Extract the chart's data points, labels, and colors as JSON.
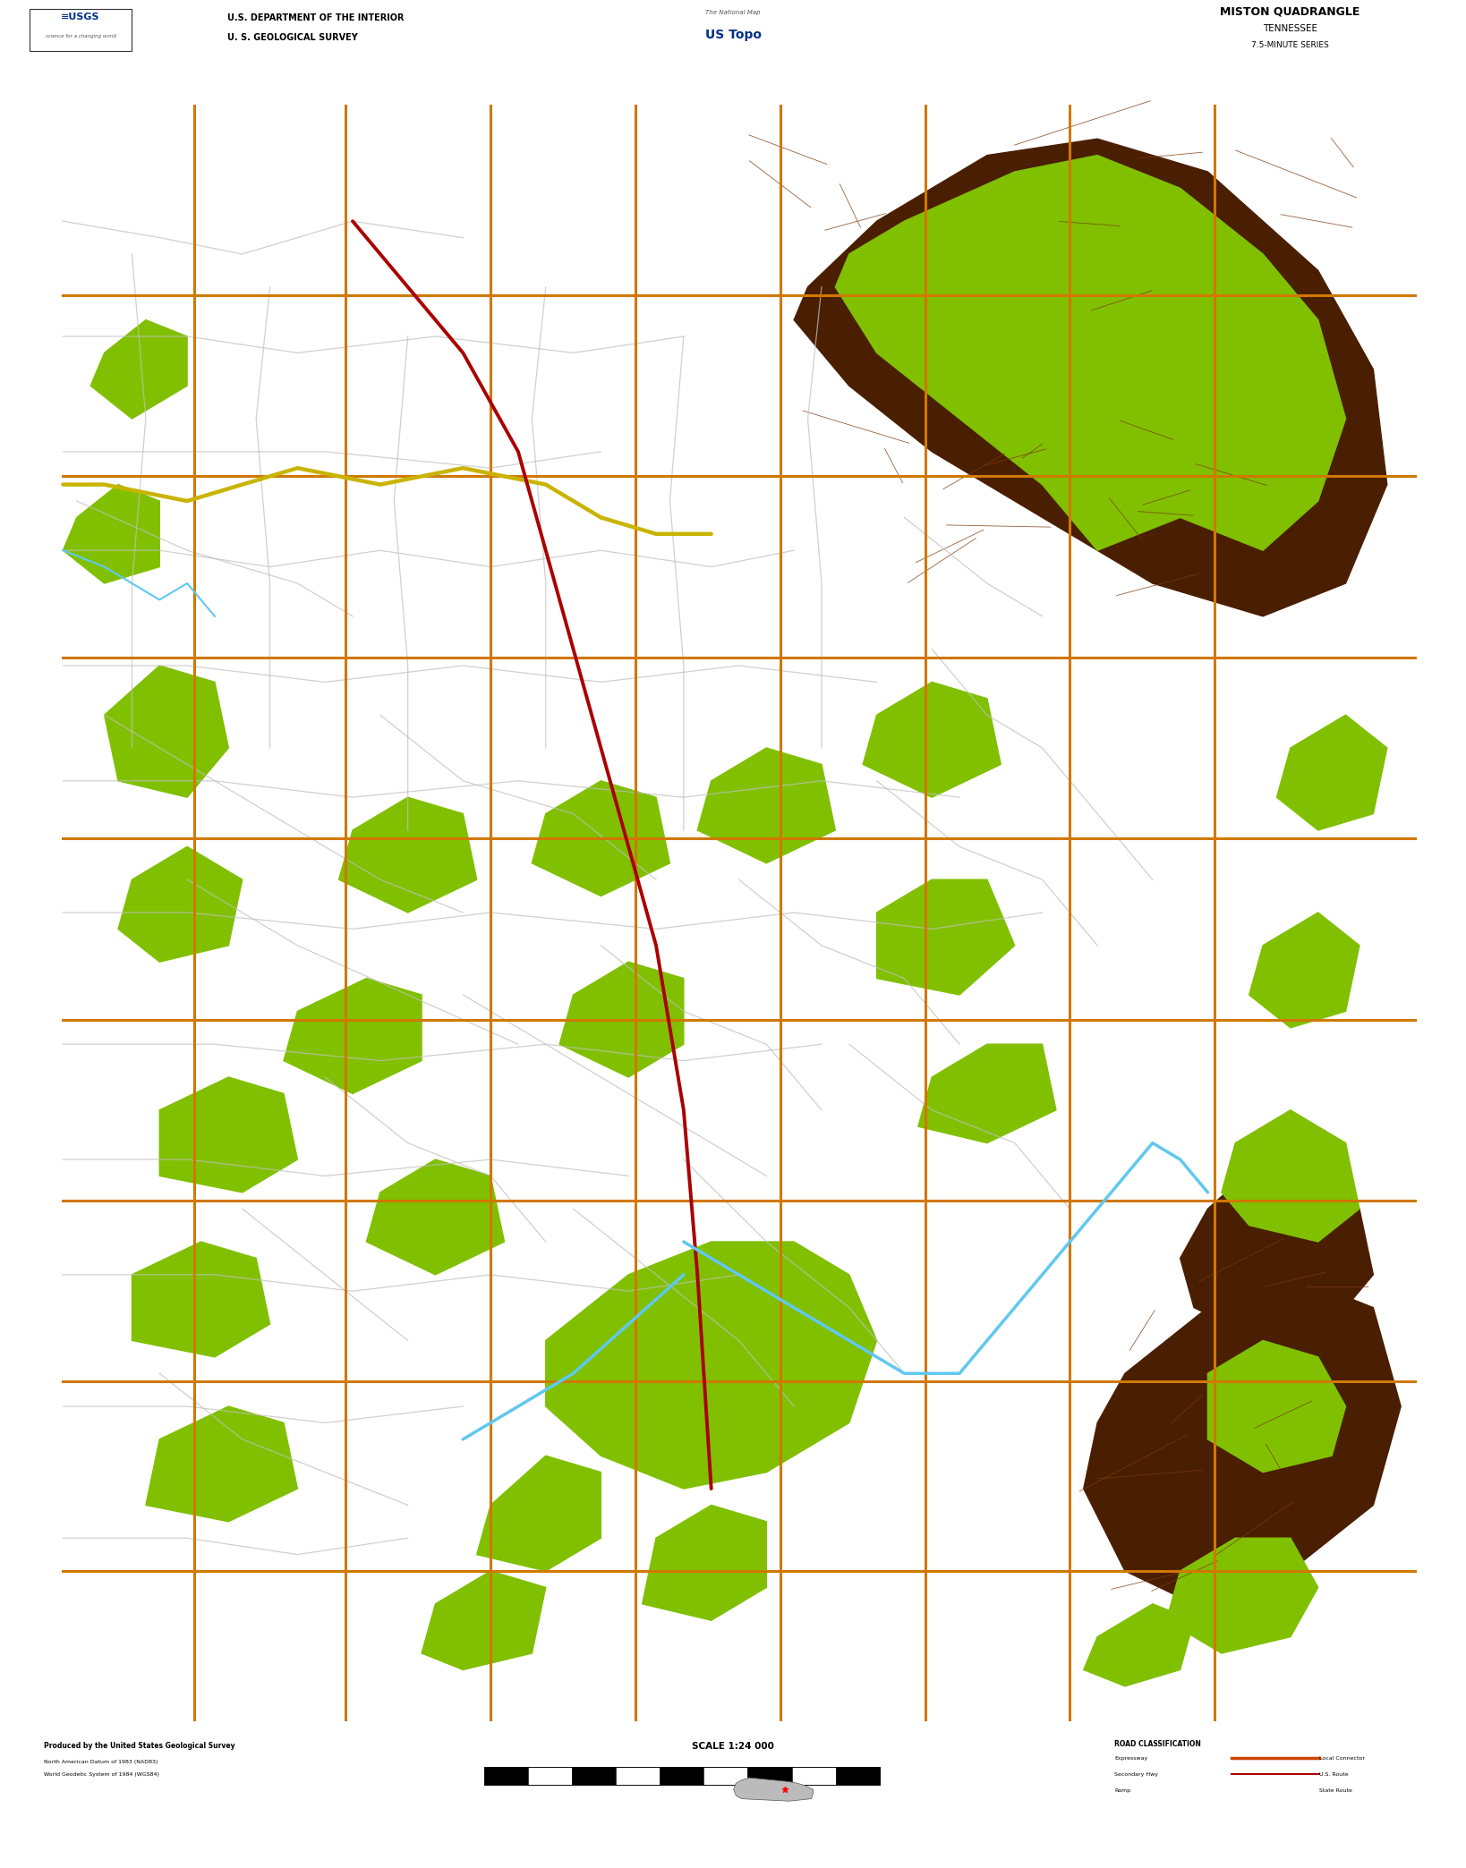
{
  "title": "MISTON QUADRANGLE",
  "subtitle1": "TENNESSEE",
  "subtitle2": "7.5-MINUTE SERIES",
  "header_left_line1": "U.S. DEPARTMENT OF THE INTERIOR",
  "header_left_line2": "U. S. GEOLOGICAL SURVEY",
  "scale_text": "SCALE 1:24 000",
  "produced_by": "Produced by the United States Geological Survey",
  "map_bg": "#050505",
  "white": "#ffffff",
  "black": "#000000",
  "light_gray": "#e8e8e8",
  "green_veg": "#80c000",
  "brown_dark": "#4a1e00",
  "brown_med": "#7a3b10",
  "blue_water": "#60c8f0",
  "orange_road": "#d07800",
  "yellow_road": "#c8b400",
  "red_road": "#aa0000",
  "white_road": "#c0c0c0",
  "fig_width": 16.38,
  "fig_height": 20.88,
  "dpi": 100
}
